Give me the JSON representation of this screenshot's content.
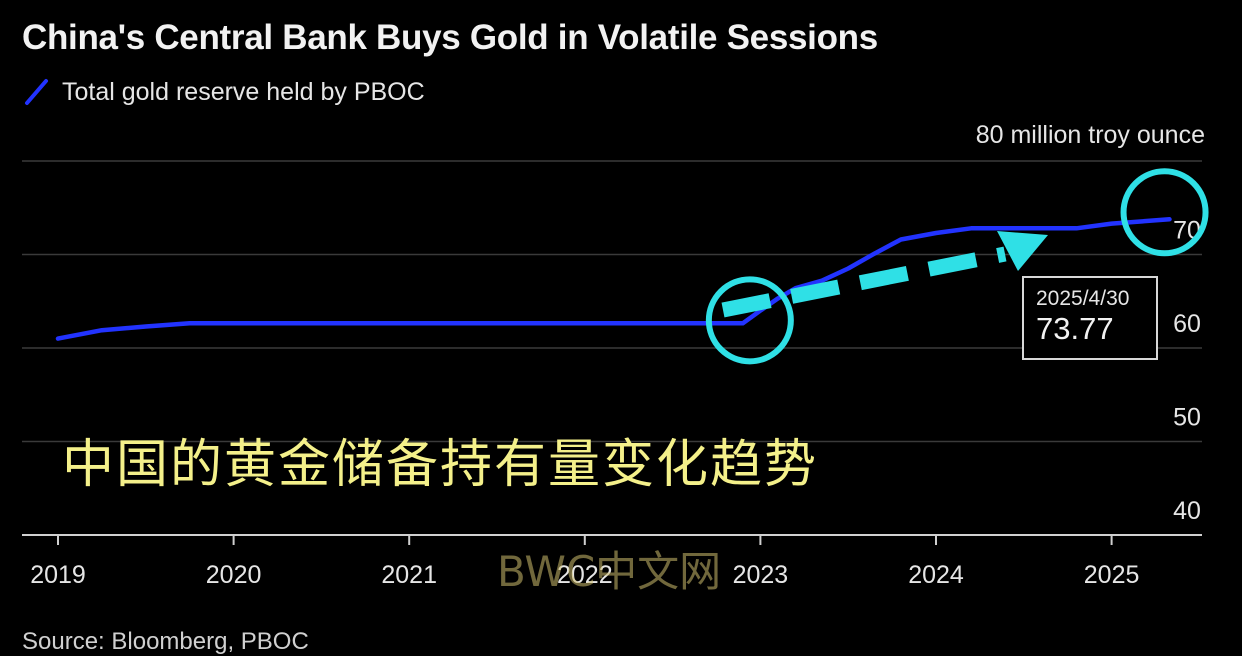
{
  "chart_data": {
    "type": "line",
    "title": "China's Central Bank Buys Gold in Volatile Sessions",
    "unit_label": "80 million troy ounce",
    "xlabel": "",
    "ylabel": "",
    "ylim": [
      40,
      80
    ],
    "yticks": [
      40,
      50,
      60,
      70
    ],
    "xticks": [
      "2019",
      "2020",
      "2021",
      "2022",
      "2023",
      "2024",
      "2025"
    ],
    "grid": true,
    "legend_position": "top-left",
    "series": [
      {
        "name": "Total gold reserve held by PBOC",
        "color": "#2233ff",
        "points": [
          {
            "x": 2019.0,
            "y": 61.0
          },
          {
            "x": 2019.25,
            "y": 61.9
          },
          {
            "x": 2019.5,
            "y": 62.3
          },
          {
            "x": 2019.75,
            "y": 62.64
          },
          {
            "x": 2020.0,
            "y": 62.64
          },
          {
            "x": 2021.0,
            "y": 62.64
          },
          {
            "x": 2022.0,
            "y": 62.64
          },
          {
            "x": 2022.9,
            "y": 62.64
          },
          {
            "x": 2023.0,
            "y": 64.0
          },
          {
            "x": 2023.1,
            "y": 65.3
          },
          {
            "x": 2023.2,
            "y": 66.4
          },
          {
            "x": 2023.35,
            "y": 67.2
          },
          {
            "x": 2023.5,
            "y": 68.5
          },
          {
            "x": 2023.65,
            "y": 70.1
          },
          {
            "x": 2023.8,
            "y": 71.6
          },
          {
            "x": 2024.0,
            "y": 72.3
          },
          {
            "x": 2024.2,
            "y": 72.8
          },
          {
            "x": 2024.5,
            "y": 72.8
          },
          {
            "x": 2024.8,
            "y": 72.8
          },
          {
            "x": 2025.0,
            "y": 73.3
          },
          {
            "x": 2025.33,
            "y": 73.77
          }
        ]
      }
    ],
    "callout": {
      "date": "2025/4/30",
      "value": "73.77"
    }
  },
  "overlay_caption": "中国的黄金储备持有量变化趋势",
  "watermark": "BWC中文网",
  "source": "Source: Bloomberg, PBOC",
  "colors": {
    "background": "#000000",
    "line": "#2233ff",
    "annotation": "#2fe0e6",
    "caption": "#f4f08a"
  }
}
